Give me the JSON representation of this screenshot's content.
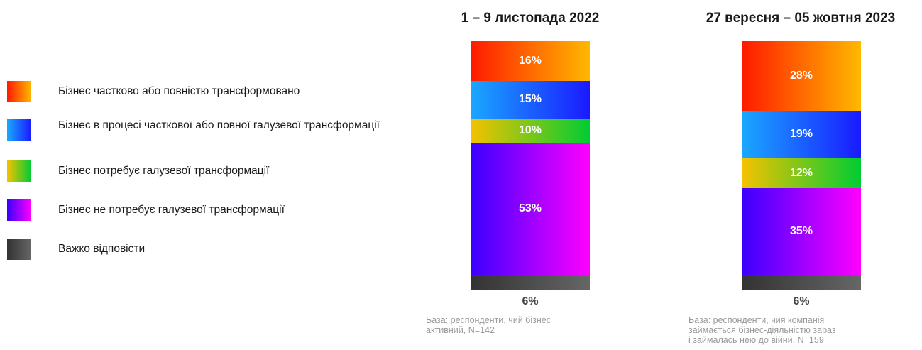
{
  "colors": {
    "transformed": [
      "#ff1a00",
      "#ffb800"
    ],
    "in_process": [
      "#1aa8ff",
      "#1a1aff"
    ],
    "needs": [
      "#f5c200",
      "#00cc33"
    ],
    "not_needed": [
      "#3a00ff",
      "#ff00ff"
    ],
    "hard": [
      "#333333",
      "#666666"
    ]
  },
  "legend": [
    {
      "key": "transformed",
      "label": "Бізнес частково або повністю трансформовано"
    },
    {
      "key": "in_process",
      "label": "Бізнес в процесі часткової або повної галузевої трансформації"
    },
    {
      "key": "needs",
      "label": "Бізнес потребує галузевої трансформації"
    },
    {
      "key": "not_needed",
      "label": "Бізнес не потребує галузевої трансформації"
    },
    {
      "key": "hard",
      "label": "Важко відповісти"
    }
  ],
  "chart_data": [
    {
      "type": "bar",
      "stacked": true,
      "title": "1 – 9 листопада 2022",
      "categories": [
        "Бізнес частково або повністю трансформовано",
        "Бізнес в процесі часткової або повної галузевої трансформації",
        "Бізнес потребує галузевої трансформації",
        "Бізнес не потребує галузевої трансформації",
        "Важко відповісти"
      ],
      "values": [
        16,
        15,
        10,
        53,
        6
      ],
      "labels": [
        "16%",
        "15%",
        "10%",
        "53%",
        "6%"
      ],
      "note": "База: респонденти, чий бізнес\nактивний, N=142"
    },
    {
      "type": "bar",
      "stacked": true,
      "title": "27 вересня – 05 жовтня 2023",
      "categories": [
        "Бізнес частково або повністю трансформовано",
        "Бізнес в процесі часткової або повної галузевої трансформації",
        "Бізнес потребує галузевої трансформації",
        "Бізнес не потребує галузевої трансформації",
        "Важко відповісти"
      ],
      "values": [
        28,
        19,
        12,
        35,
        6
      ],
      "labels": [
        "28%",
        "19%",
        "12%",
        "35%",
        "6%"
      ],
      "note": "База: респонденти, чия компанія\nзаймається бізнес-діяльністю зараз\nі займалась нею до війни, N=159"
    }
  ]
}
